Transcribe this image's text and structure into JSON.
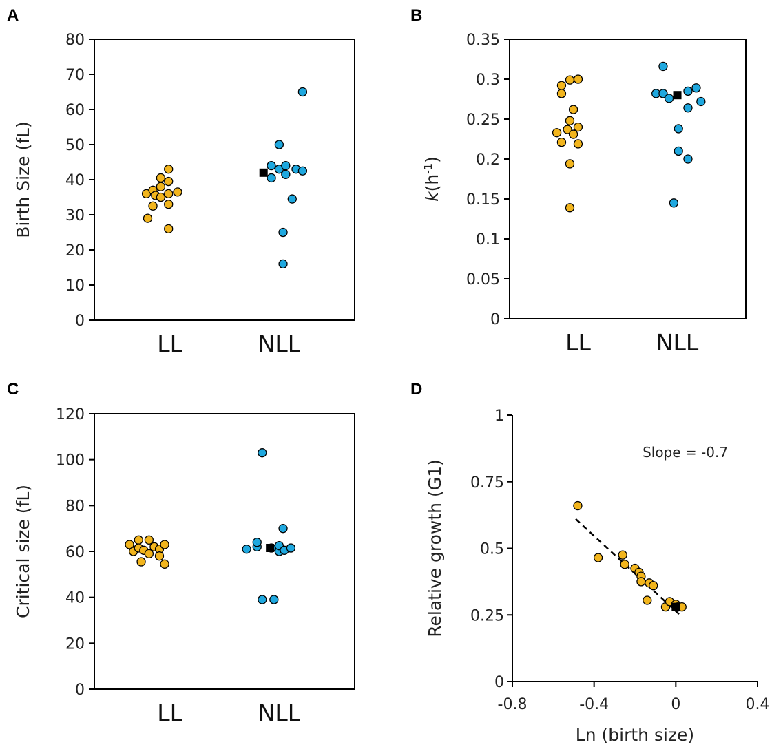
{
  "colors": {
    "ll": "#f2b51d",
    "nll": "#1fa8df",
    "mean": "#000000",
    "axis": "#000000"
  },
  "chart_data": [
    {
      "panel": "A",
      "type": "scatter",
      "ylabel": "Birth Size (fL)",
      "ylim": [
        0,
        80
      ],
      "yticks": [
        "0",
        "10",
        "20",
        "30",
        "40",
        "50",
        "60",
        "70",
        "80"
      ],
      "categories": [
        "LL",
        "NLL"
      ],
      "series": [
        {
          "name": "LL",
          "points": [
            {
              "x": -0.17,
              "y": 29
            },
            {
              "x": -0.18,
              "y": 36
            },
            {
              "x": -0.13,
              "y": 37
            },
            {
              "x": -0.13,
              "y": 32.5
            },
            {
              "x": -0.11,
              "y": 35.5
            },
            {
              "x": -0.07,
              "y": 40.5
            },
            {
              "x": -0.07,
              "y": 38
            },
            {
              "x": -0.07,
              "y": 35
            },
            {
              "x": -0.01,
              "y": 43
            },
            {
              "x": -0.01,
              "y": 39.5
            },
            {
              "x": -0.01,
              "y": 36
            },
            {
              "x": -0.01,
              "y": 33
            },
            {
              "x": -0.01,
              "y": 26
            },
            {
              "x": 0.06,
              "y": 36.5
            }
          ]
        },
        {
          "name": "NLL",
          "points": [
            {
              "x": -0.06,
              "y": 44
            },
            {
              "x": -0.06,
              "y": 40.5
            },
            {
              "x": 0.0,
              "y": 50
            },
            {
              "x": 0.0,
              "y": 43
            },
            {
              "x": 0.03,
              "y": 25
            },
            {
              "x": 0.03,
              "y": 16
            },
            {
              "x": 0.05,
              "y": 44
            },
            {
              "x": 0.05,
              "y": 41.5
            },
            {
              "x": 0.1,
              "y": 34.5
            },
            {
              "x": 0.13,
              "y": 43
            },
            {
              "x": 0.18,
              "y": 42.5
            },
            {
              "x": 0.18,
              "y": 65
            }
          ]
        },
        {
          "name": "mean",
          "marker": "square",
          "points": [
            {
              "x": -0.12,
              "y": 42
            }
          ]
        }
      ]
    },
    {
      "panel": "B",
      "type": "scatter",
      "ylabel": "k(h⁻¹)",
      "ylim": [
        0,
        0.35
      ],
      "yticks": [
        "0",
        "0.05",
        "0.1",
        "0.15",
        "0.2",
        "0.25",
        "0.3",
        "0.35"
      ],
      "categories": [
        "LL",
        "NLL"
      ],
      "series": [
        {
          "name": "LL",
          "points": [
            {
              "x": -0.18,
              "y": 0.233
            },
            {
              "x": -0.14,
              "y": 0.221
            },
            {
              "x": -0.14,
              "y": 0.292
            },
            {
              "x": -0.14,
              "y": 0.282
            },
            {
              "x": -0.09,
              "y": 0.237
            },
            {
              "x": -0.07,
              "y": 0.299
            },
            {
              "x": -0.07,
              "y": 0.248
            },
            {
              "x": -0.07,
              "y": 0.194
            },
            {
              "x": -0.07,
              "y": 0.139
            },
            {
              "x": -0.04,
              "y": 0.262
            },
            {
              "x": -0.04,
              "y": 0.231
            },
            {
              "x": 0.0,
              "y": 0.3
            },
            {
              "x": 0.0,
              "y": 0.24
            },
            {
              "x": 0.0,
              "y": 0.219
            }
          ]
        },
        {
          "name": "NLL",
          "points": [
            {
              "x": -0.18,
              "y": 0.282
            },
            {
              "x": -0.12,
              "y": 0.282
            },
            {
              "x": -0.07,
              "y": 0.276
            },
            {
              "x": -0.12,
              "y": 0.316
            },
            {
              "x": -0.03,
              "y": 0.145
            },
            {
              "x": 0.01,
              "y": 0.238
            },
            {
              "x": 0.01,
              "y": 0.21
            },
            {
              "x": 0.09,
              "y": 0.285
            },
            {
              "x": 0.09,
              "y": 0.264
            },
            {
              "x": 0.09,
              "y": 0.2
            },
            {
              "x": 0.16,
              "y": 0.289
            },
            {
              "x": 0.2,
              "y": 0.272
            }
          ]
        },
        {
          "name": "mean",
          "marker": "square",
          "points": [
            {
              "x": 0.0,
              "y": 0.28
            }
          ]
        }
      ]
    },
    {
      "panel": "C",
      "type": "scatter",
      "ylabel": "Critical size (fL)",
      "ylim": [
        0,
        120
      ],
      "yticks": [
        "0",
        "20",
        "40",
        "60",
        "80",
        "100",
        "120"
      ],
      "categories": [
        "LL",
        "NLL"
      ],
      "series": [
        {
          "name": "LL",
          "points": [
            {
              "x": -0.31,
              "y": 63
            },
            {
              "x": -0.28,
              "y": 60
            },
            {
              "x": -0.24,
              "y": 65
            },
            {
              "x": -0.24,
              "y": 61.5
            },
            {
              "x": -0.22,
              "y": 55.5
            },
            {
              "x": -0.2,
              "y": 60.5
            },
            {
              "x": -0.16,
              "y": 65
            },
            {
              "x": -0.16,
              "y": 59
            },
            {
              "x": -0.12,
              "y": 62
            },
            {
              "x": -0.08,
              "y": 61
            },
            {
              "x": -0.08,
              "y": 58
            },
            {
              "x": -0.04,
              "y": 63
            },
            {
              "x": -0.04,
              "y": 54.5
            }
          ]
        },
        {
          "name": "NLL",
          "points": [
            {
              "x": -0.25,
              "y": 61
            },
            {
              "x": -0.17,
              "y": 62
            },
            {
              "x": -0.17,
              "y": 64
            },
            {
              "x": -0.13,
              "y": 103
            },
            {
              "x": -0.13,
              "y": 39
            },
            {
              "x": -0.06,
              "y": 61.5
            },
            {
              "x": -0.04,
              "y": 39
            },
            {
              "x": 0.0,
              "y": 60
            },
            {
              "x": 0.0,
              "y": 62.5
            },
            {
              "x": 0.03,
              "y": 70
            },
            {
              "x": 0.04,
              "y": 60.5
            },
            {
              "x": 0.09,
              "y": 61.5
            }
          ]
        },
        {
          "name": "mean",
          "marker": "square",
          "points": [
            {
              "x": -0.07,
              "y": 61.5
            }
          ]
        }
      ]
    },
    {
      "panel": "D",
      "type": "scatter",
      "xlabel": "Ln (birth size)",
      "ylabel": "Relative growth (G1)",
      "xlim": [
        -0.8,
        0.4
      ],
      "ylim": [
        0,
        1
      ],
      "xticks": [
        "-0.8",
        "-0.4",
        "0",
        "0.4"
      ],
      "yticks": [
        "0",
        "0.25",
        "0.5",
        "0.75",
        "1"
      ],
      "annotation": "Slope = -0.7",
      "fit_line": {
        "x": [
          -0.49,
          0.02
        ],
        "y": [
          0.61,
          0.25
        ],
        "style": "dashed"
      },
      "series": [
        {
          "name": "LL",
          "points": [
            {
              "x": -0.48,
              "y": 0.66
            },
            {
              "x": -0.38,
              "y": 0.465
            },
            {
              "x": -0.26,
              "y": 0.475
            },
            {
              "x": -0.25,
              "y": 0.44
            },
            {
              "x": -0.2,
              "y": 0.425
            },
            {
              "x": -0.18,
              "y": 0.41
            },
            {
              "x": -0.17,
              "y": 0.395
            },
            {
              "x": -0.17,
              "y": 0.375
            },
            {
              "x": -0.14,
              "y": 0.305
            },
            {
              "x": -0.13,
              "y": 0.37
            },
            {
              "x": -0.11,
              "y": 0.36
            },
            {
              "x": -0.05,
              "y": 0.28
            },
            {
              "x": -0.03,
              "y": 0.3
            },
            {
              "x": 0.0,
              "y": 0.29
            },
            {
              "x": 0.01,
              "y": 0.28
            },
            {
              "x": 0.03,
              "y": 0.28
            }
          ]
        },
        {
          "name": "mean",
          "marker": "square",
          "points": [
            {
              "x": 0.0,
              "y": 0.28
            }
          ]
        }
      ]
    }
  ]
}
